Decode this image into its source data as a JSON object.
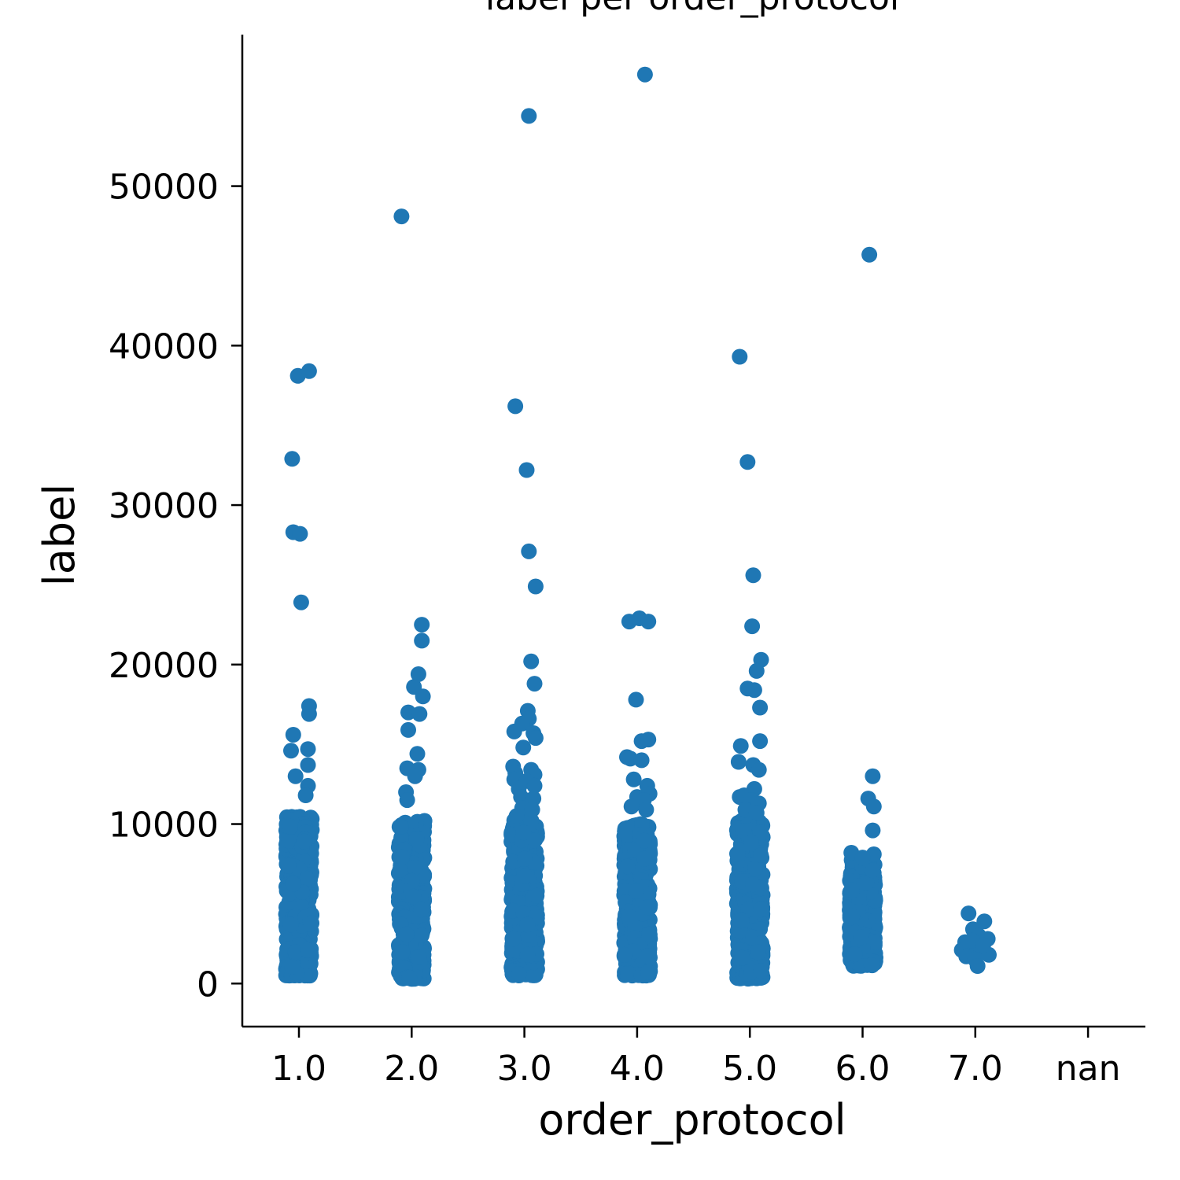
{
  "chart_data": {
    "type": "scatter",
    "title": "label per order_protocol",
    "xlabel": "order_protocol",
    "ylabel": "label",
    "categories": [
      "1.0",
      "2.0",
      "3.0",
      "4.0",
      "5.0",
      "6.0",
      "7.0",
      "nan"
    ],
    "ylim": [
      -2700,
      59500
    ],
    "yticks": [
      0,
      10000,
      20000,
      30000,
      40000,
      50000
    ],
    "ytick_labels": [
      "0",
      "10000",
      "20000",
      "30000",
      "40000",
      "50000"
    ],
    "grid": false,
    "color": "#1f77b4",
    "series": [
      {
        "category": "1.0",
        "bulk_range": [
          500,
          10500
        ],
        "outliers": [
          {
            "x": -0.05,
            "y": 28300
          },
          {
            "x": 0.01,
            "y": 28200
          },
          {
            "x": -0.06,
            "y": 32900
          },
          {
            "x": -0.01,
            "y": 38100
          },
          {
            "x": 0.09,
            "y": 38400
          },
          {
            "x": 0.02,
            "y": 23900
          },
          {
            "x": 0.09,
            "y": 17400
          },
          {
            "x": 0.09,
            "y": 16900
          },
          {
            "x": -0.05,
            "y": 15600
          },
          {
            "x": 0.08,
            "y": 14700
          },
          {
            "x": -0.07,
            "y": 14600
          },
          {
            "x": 0.08,
            "y": 13700
          },
          {
            "x": -0.03,
            "y": 13000
          },
          {
            "x": 0.08,
            "y": 12400
          },
          {
            "x": 0.06,
            "y": 11800
          }
        ]
      },
      {
        "category": "2.0",
        "bulk_range": [
          300,
          10200
        ],
        "outliers": [
          {
            "x": -0.09,
            "y": 48100
          },
          {
            "x": 0.09,
            "y": 22500
          },
          {
            "x": 0.09,
            "y": 21500
          },
          {
            "x": 0.06,
            "y": 19400
          },
          {
            "x": 0.02,
            "y": 18600
          },
          {
            "x": 0.1,
            "y": 18000
          },
          {
            "x": -0.03,
            "y": 17000
          },
          {
            "x": 0.07,
            "y": 16900
          },
          {
            "x": -0.03,
            "y": 15900
          },
          {
            "x": 0.05,
            "y": 14400
          },
          {
            "x": -0.04,
            "y": 13500
          },
          {
            "x": 0.06,
            "y": 13400
          },
          {
            "x": 0.03,
            "y": 13000
          },
          {
            "x": -0.05,
            "y": 12000
          },
          {
            "x": -0.04,
            "y": 11500
          }
        ]
      },
      {
        "category": "3.0",
        "bulk_range": [
          500,
          10300
        ],
        "outliers": [
          {
            "x": 0.04,
            "y": 54400
          },
          {
            "x": -0.08,
            "y": 36200
          },
          {
            "x": 0.02,
            "y": 32200
          },
          {
            "x": 0.04,
            "y": 27100
          },
          {
            "x": 0.1,
            "y": 24900
          },
          {
            "x": 0.06,
            "y": 20200
          },
          {
            "x": 0.09,
            "y": 18800
          },
          {
            "x": 0.03,
            "y": 17100
          },
          {
            "x": 0.04,
            "y": 16600
          },
          {
            "x": -0.02,
            "y": 16300
          },
          {
            "x": -0.09,
            "y": 15800
          },
          {
            "x": 0.08,
            "y": 15700
          },
          {
            "x": 0.1,
            "y": 15400
          },
          {
            "x": -0.01,
            "y": 14800
          },
          {
            "x": -0.1,
            "y": 13600
          },
          {
            "x": 0.06,
            "y": 13400
          },
          {
            "x": -0.08,
            "y": 13200
          },
          {
            "x": 0.09,
            "y": 13100
          },
          {
            "x": -0.09,
            "y": 12800
          },
          {
            "x": 0.02,
            "y": 12700
          },
          {
            "x": 0.09,
            "y": 12400
          },
          {
            "x": -0.05,
            "y": 12200
          },
          {
            "x": -0.03,
            "y": 11700
          },
          {
            "x": 0.08,
            "y": 11600
          },
          {
            "x": -0.02,
            "y": 11000
          },
          {
            "x": 0.07,
            "y": 10900
          },
          {
            "x": -0.07,
            "y": 10500
          }
        ]
      },
      {
        "category": "4.0",
        "bulk_range": [
          500,
          10000
        ],
        "outliers": [
          {
            "x": 0.07,
            "y": 57000
          },
          {
            "x": -0.07,
            "y": 22700
          },
          {
            "x": 0.02,
            "y": 22900
          },
          {
            "x": 0.1,
            "y": 22700
          },
          {
            "x": -0.01,
            "y": 17800
          },
          {
            "x": 0.04,
            "y": 15200
          },
          {
            "x": 0.1,
            "y": 15300
          },
          {
            "x": -0.09,
            "y": 14200
          },
          {
            "x": -0.06,
            "y": 14100
          },
          {
            "x": 0.04,
            "y": 14000
          },
          {
            "x": -0.03,
            "y": 12800
          },
          {
            "x": 0.09,
            "y": 12400
          },
          {
            "x": 0.11,
            "y": 11900
          },
          {
            "x": 0.0,
            "y": 11700
          },
          {
            "x": 0.06,
            "y": 11500
          },
          {
            "x": -0.05,
            "y": 11100
          },
          {
            "x": 0.08,
            "y": 10900
          }
        ]
      },
      {
        "category": "5.0",
        "bulk_range": [
          300,
          10300
        ],
        "outliers": [
          {
            "x": -0.09,
            "y": 39300
          },
          {
            "x": -0.02,
            "y": 32700
          },
          {
            "x": 0.03,
            "y": 25600
          },
          {
            "x": 0.02,
            "y": 22400
          },
          {
            "x": 0.1,
            "y": 20300
          },
          {
            "x": 0.06,
            "y": 19600
          },
          {
            "x": -0.02,
            "y": 18500
          },
          {
            "x": 0.04,
            "y": 18400
          },
          {
            "x": 0.09,
            "y": 17300
          },
          {
            "x": 0.09,
            "y": 15200
          },
          {
            "x": -0.08,
            "y": 14900
          },
          {
            "x": -0.1,
            "y": 13900
          },
          {
            "x": 0.03,
            "y": 13700
          },
          {
            "x": 0.08,
            "y": 13400
          },
          {
            "x": 0.04,
            "y": 12200
          },
          {
            "x": -0.09,
            "y": 11700
          },
          {
            "x": -0.05,
            "y": 11800
          },
          {
            "x": 0.01,
            "y": 11500
          },
          {
            "x": 0.08,
            "y": 11300
          },
          {
            "x": -0.04,
            "y": 10900
          },
          {
            "x": 0.06,
            "y": 10700
          }
        ]
      },
      {
        "category": "6.0",
        "bulk_range": [
          1100,
          7800
        ],
        "outliers": [
          {
            "x": 0.06,
            "y": 45700
          },
          {
            "x": 0.09,
            "y": 13000
          },
          {
            "x": 0.05,
            "y": 11600
          },
          {
            "x": 0.1,
            "y": 11100
          },
          {
            "x": 0.09,
            "y": 9600
          },
          {
            "x": -0.1,
            "y": 8200
          },
          {
            "x": 0.1,
            "y": 8100
          },
          {
            "x": 0.0,
            "y": 7900
          },
          {
            "x": 0.09,
            "y": 7100
          }
        ]
      },
      {
        "category": "7.0",
        "outliers": [
          {
            "x": -0.06,
            "y": 4400
          },
          {
            "x": 0.08,
            "y": 3900
          },
          {
            "x": -0.02,
            "y": 3400
          },
          {
            "x": 0.03,
            "y": 3000
          },
          {
            "x": 0.11,
            "y": 2800
          },
          {
            "x": -0.09,
            "y": 2600
          },
          {
            "x": -0.05,
            "y": 2300
          },
          {
            "x": -0.12,
            "y": 2100
          },
          {
            "x": 0.05,
            "y": 2000
          },
          {
            "x": -0.08,
            "y": 1700
          },
          {
            "x": 0.12,
            "y": 1800
          },
          {
            "x": 0.0,
            "y": 1500
          },
          {
            "x": 0.02,
            "y": 1100
          },
          {
            "x": -0.03,
            "y": 2700
          },
          {
            "x": 0.07,
            "y": 2400
          }
        ]
      }
    ]
  }
}
